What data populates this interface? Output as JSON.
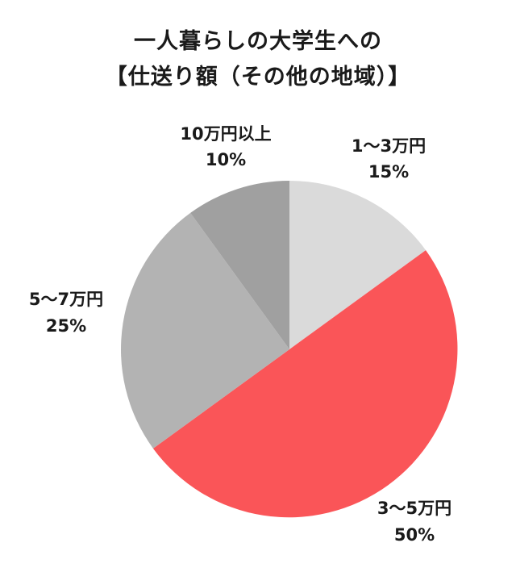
{
  "chart_data": {
    "type": "pie",
    "title_lines": [
      "一人暮らしの大学生への",
      "【仕送り額（その他の地域）】"
    ],
    "slices": [
      {
        "label": "1〜3万円",
        "value": 15,
        "value_label": "15%",
        "color": "#dadada"
      },
      {
        "label": "3〜5万円",
        "value": 50,
        "value_label": "50%",
        "color": "#fa5558"
      },
      {
        "label": "5〜7万円",
        "value": 25,
        "value_label": "25%",
        "color": "#b3b3b3"
      },
      {
        "label": "10万円以上",
        "value": 10,
        "value_label": "10%",
        "color": "#a0a0a0"
      }
    ],
    "start_angle": "12 o'clock",
    "direction": "clockwise"
  }
}
